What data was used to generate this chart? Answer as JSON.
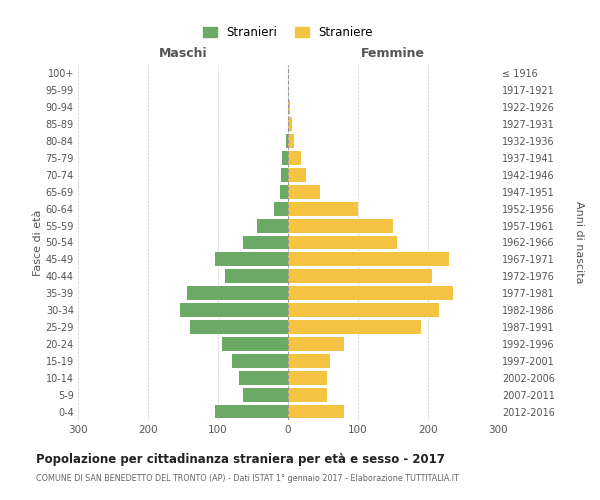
{
  "age_groups": [
    "0-4",
    "5-9",
    "10-14",
    "15-19",
    "20-24",
    "25-29",
    "30-34",
    "35-39",
    "40-44",
    "45-49",
    "50-54",
    "55-59",
    "60-64",
    "65-69",
    "70-74",
    "75-79",
    "80-84",
    "85-89",
    "90-94",
    "95-99",
    "100+"
  ],
  "birth_years": [
    "2012-2016",
    "2007-2011",
    "2002-2006",
    "1997-2001",
    "1992-1996",
    "1987-1991",
    "1982-1986",
    "1977-1981",
    "1972-1976",
    "1967-1971",
    "1962-1966",
    "1957-1961",
    "1952-1956",
    "1947-1951",
    "1942-1946",
    "1937-1941",
    "1932-1936",
    "1927-1931",
    "1922-1926",
    "1917-1921",
    "≤ 1916"
  ],
  "males": [
    105,
    65,
    70,
    80,
    95,
    140,
    155,
    145,
    90,
    105,
    65,
    45,
    20,
    12,
    10,
    8,
    3,
    0,
    0,
    0,
    0
  ],
  "females": [
    80,
    55,
    55,
    60,
    80,
    190,
    215,
    235,
    205,
    230,
    155,
    150,
    100,
    45,
    25,
    18,
    8,
    5,
    3,
    0,
    0
  ],
  "male_color": "#6aaa64",
  "female_color": "#f5c342",
  "center_line_color": "#999999",
  "grid_color": "#cccccc",
  "background_color": "#ffffff",
  "title": "Popolazione per cittadinanza straniera per età e sesso - 2017",
  "subtitle": "COMUNE DI SAN BENEDETTO DEL TRONTO (AP) - Dati ISTAT 1° gennaio 2017 - Elaborazione TUTTITALIA.IT",
  "xlabel_left": "Maschi",
  "xlabel_right": "Femmine",
  "ylabel_left": "Fasce di età",
  "ylabel_right": "Anni di nascita",
  "legend_male": "Stranieri",
  "legend_female": "Straniere",
  "xlim": 300,
  "xticks": [
    -300,
    -200,
    -100,
    0,
    100,
    200,
    300
  ],
  "xtick_labels": [
    "300",
    "200",
    "100",
    "0",
    "100",
    "200",
    "300"
  ]
}
